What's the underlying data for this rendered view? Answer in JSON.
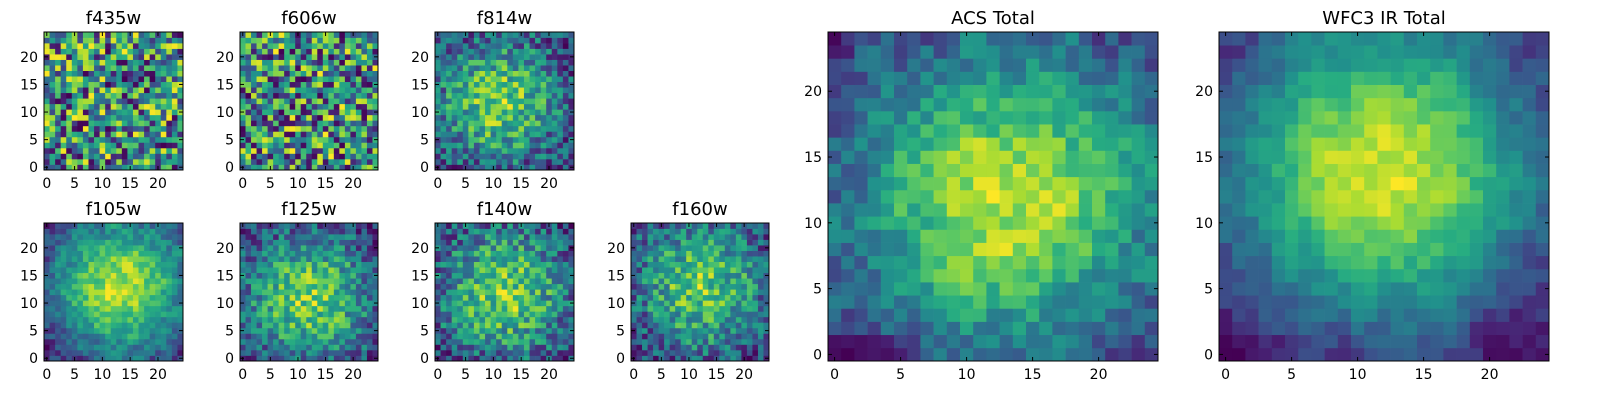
{
  "figure": {
    "colormap": "viridis",
    "background": "#ffffff"
  },
  "chart_data": [
    {
      "type": "heatmap",
      "title": "f435w",
      "grid_size": 25,
      "xlim": [
        0,
        24
      ],
      "ylim": [
        0,
        24
      ],
      "xticks": [
        0,
        5,
        10,
        15,
        20
      ],
      "yticks": [
        0,
        5,
        10,
        15,
        20
      ],
      "x_tick_labels": [
        "0",
        "5",
        "10",
        "15",
        "20"
      ],
      "y_tick_labels": [
        "0",
        "5",
        "10",
        "15",
        "20"
      ],
      "pattern": "noise",
      "seed": 11,
      "center": [
        12,
        12
      ],
      "noise": 0.55
    },
    {
      "type": "heatmap",
      "title": "f606w",
      "grid_size": 25,
      "xlim": [
        0,
        24
      ],
      "ylim": [
        0,
        24
      ],
      "xticks": [
        0,
        5,
        10,
        15,
        20
      ],
      "yticks": [
        0,
        5,
        10,
        15,
        20
      ],
      "x_tick_labels": [
        "0",
        "5",
        "10",
        "15",
        "20"
      ],
      "y_tick_labels": [
        "0",
        "5",
        "10",
        "15",
        "20"
      ],
      "pattern": "noise",
      "seed": 23,
      "center": [
        12,
        12
      ],
      "noise": 0.5
    },
    {
      "type": "heatmap",
      "title": "f814w",
      "grid_size": 25,
      "xlim": [
        0,
        24
      ],
      "ylim": [
        0,
        24
      ],
      "xticks": [
        0,
        5,
        10,
        15,
        20
      ],
      "yticks": [
        0,
        5,
        10,
        15,
        20
      ],
      "x_tick_labels": [
        "0",
        "5",
        "10",
        "15",
        "20"
      ],
      "y_tick_labels": [
        "0",
        "5",
        "10",
        "15",
        "20"
      ],
      "pattern": "blob",
      "seed": 37,
      "center": [
        11,
        12
      ],
      "noise": 0.4
    },
    {
      "type": "heatmap",
      "title": "f105w",
      "grid_size": 25,
      "xlim": [
        0,
        24
      ],
      "ylim": [
        0,
        24
      ],
      "xticks": [
        0,
        5,
        10,
        15,
        20
      ],
      "yticks": [
        0,
        5,
        10,
        15,
        20
      ],
      "x_tick_labels": [
        "0",
        "5",
        "10",
        "15",
        "20"
      ],
      "y_tick_labels": [
        "0",
        "5",
        "10",
        "15",
        "20"
      ],
      "pattern": "blob",
      "seed": 41,
      "center": [
        13,
        13
      ],
      "noise": 0.3
    },
    {
      "type": "heatmap",
      "title": "f125w",
      "grid_size": 25,
      "xlim": [
        0,
        24
      ],
      "ylim": [
        0,
        24
      ],
      "xticks": [
        0,
        5,
        10,
        15,
        20
      ],
      "yticks": [
        0,
        5,
        10,
        15,
        20
      ],
      "x_tick_labels": [
        "0",
        "5",
        "10",
        "15",
        "20"
      ],
      "y_tick_labels": [
        "0",
        "5",
        "10",
        "15",
        "20"
      ],
      "pattern": "blob",
      "seed": 53,
      "center": [
        12,
        11
      ],
      "noise": 0.35
    },
    {
      "type": "heatmap",
      "title": "f140w",
      "grid_size": 25,
      "xlim": [
        0,
        24
      ],
      "ylim": [
        0,
        24
      ],
      "xticks": [
        0,
        5,
        10,
        15,
        20
      ],
      "yticks": [
        0,
        5,
        10,
        15,
        20
      ],
      "x_tick_labels": [
        "0",
        "5",
        "10",
        "15",
        "20"
      ],
      "y_tick_labels": [
        "0",
        "5",
        "10",
        "15",
        "20"
      ],
      "pattern": "blob",
      "seed": 67,
      "center": [
        12,
        12
      ],
      "noise": 0.4
    },
    {
      "type": "heatmap",
      "title": "f160w",
      "grid_size": 25,
      "xlim": [
        0,
        24
      ],
      "ylim": [
        0,
        24
      ],
      "xticks": [
        0,
        5,
        10,
        15,
        20
      ],
      "yticks": [
        0,
        5,
        10,
        15,
        20
      ],
      "x_tick_labels": [
        "0",
        "5",
        "10",
        "15",
        "20"
      ],
      "y_tick_labels": [
        "0",
        "5",
        "10",
        "15",
        "20"
      ],
      "pattern": "blob",
      "seed": 79,
      "center": [
        12,
        13
      ],
      "noise": 0.4
    },
    {
      "type": "heatmap",
      "title": "ACS Total",
      "grid_size": 25,
      "xlim": [
        0,
        24
      ],
      "ylim": [
        0,
        24
      ],
      "xticks": [
        0,
        5,
        10,
        15,
        20
      ],
      "yticks": [
        0,
        5,
        10,
        15,
        20
      ],
      "x_tick_labels": [
        "0",
        "5",
        "10",
        "15",
        "20"
      ],
      "y_tick_labels": [
        "0",
        "5",
        "10",
        "15",
        "20"
      ],
      "pattern": "blob",
      "seed": 97,
      "center": [
        13,
        12
      ],
      "noise": 0.3
    },
    {
      "type": "heatmap",
      "title": "WFC3 IR Total",
      "grid_size": 25,
      "xlim": [
        0,
        24
      ],
      "ylim": [
        0,
        24
      ],
      "xticks": [
        0,
        5,
        10,
        15,
        20
      ],
      "yticks": [
        0,
        5,
        10,
        15,
        20
      ],
      "x_tick_labels": [
        "0",
        "5",
        "10",
        "15",
        "20"
      ],
      "y_tick_labels": [
        "0",
        "5",
        "10",
        "15",
        "20"
      ],
      "pattern": "blob",
      "seed": 131,
      "center": [
        12,
        14
      ],
      "noise": 0.15
    }
  ]
}
